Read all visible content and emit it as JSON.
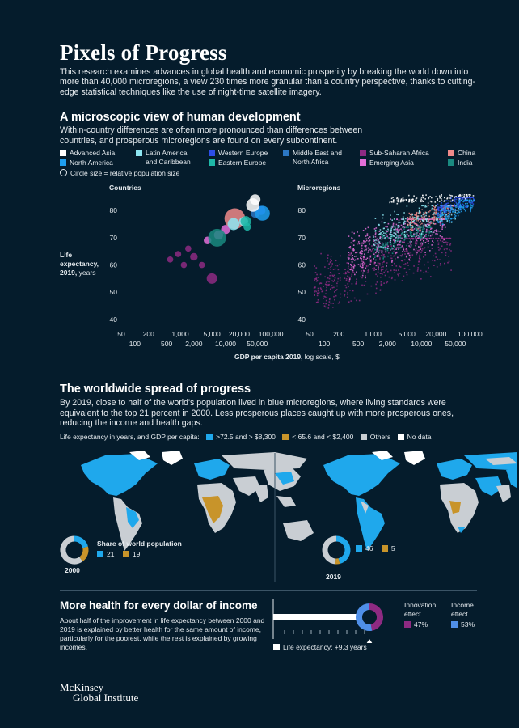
{
  "header": {
    "title": "Pixels of Progress",
    "intro": "This research examines advances in global health and economic prosperity by breaking the world down into more than 40,000 microregions, a view 230 times more granular than a country perspective, thanks to cutting-edge statistical techniques like the use of night-time satellite imagery."
  },
  "section1": {
    "heading": "A microscopic view of human development",
    "subtitle": "Within-country differences are often more pronounced than differences between countries, and prosperous microregions are found on every subcontinent.",
    "legend": [
      {
        "label": "Advanced Asia",
        "color": "#ffffff"
      },
      {
        "label": "North America",
        "color": "#1f9ff0"
      },
      {
        "label": "Latin America and Caribbean",
        "color": "#8de6f2"
      },
      {
        "label": "Western Europe",
        "color": "#2d4ee8"
      },
      {
        "label": "Eastern Europe",
        "color": "#1fb8a8"
      },
      {
        "label": "Middle East and North Africa",
        "color": "#2c77c4"
      },
      {
        "label": "Sub-Saharan Africa",
        "color": "#8e2a82"
      },
      {
        "label": "Emerging Asia",
        "color": "#e46fd9"
      },
      {
        "label": "China",
        "color": "#f08a8a"
      },
      {
        "label": "India",
        "color": "#1a8a80"
      }
    ],
    "circle_note": "Circle size = relative population size",
    "panel_left_title": "Countries",
    "panel_right_title": "Microregions",
    "ylabel_line1": "Life",
    "ylabel_line2": "expectancy,",
    "ylabel_line3": "2019,",
    "ylabel_unit": "years",
    "xlabel": "GDP per capita 2019,",
    "xlabel_unit": "log scale, $",
    "y_ticks": [
      "40",
      "50",
      "60",
      "70",
      "80"
    ],
    "x_ticks_top": [
      "50",
      "200",
      "1,000",
      "5,000",
      "20,000",
      "100,000"
    ],
    "x_ticks_bottom": [
      "100",
      "500",
      "2,000",
      "10,000",
      "50,000"
    ]
  },
  "section2": {
    "heading": "The worldwide spread of progress",
    "subtitle": "By 2019, close to half of the world's population lived in blue microregions, where living standards were equivalent to the top 21 percent in 2000. Less prosperous places caught up with more prosperous ones, reducing the income and health gaps.",
    "legend_prefix": "Life expectancy in years, and GDP per capita:",
    "legend": [
      {
        "label": ">72.5 and > $8,300",
        "color": "#1fa8ec"
      },
      {
        "label": "< 65.6 and < $2,400",
        "color": "#c8942a"
      },
      {
        "label": "Others",
        "color": "#c9ced3"
      },
      {
        "label": "No data",
        "color": "#ffffff"
      }
    ],
    "share_title": "Share of world population",
    "year_2000": "2000",
    "year_2019": "2019",
    "share_2000_blue": "21",
    "share_2000_gold": "19",
    "share_2019_blue": "46",
    "share_2019_gold": "5"
  },
  "section3": {
    "heading": "More health for every dollar of income",
    "body": "About half of the improvement in life expectancy between 2000 and 2019 is explained by better health for the same amount of income, particularly for the poorest, while the rest is explained by growing incomes.",
    "innovation_label_1": "Innovation",
    "innovation_label_2": "effect",
    "innovation_value": "47%",
    "income_label_1": "Income",
    "income_label_2": "effect",
    "income_value": "53%",
    "bar_legend": "Life expectancy: +9.3 years"
  },
  "footer": {
    "brand_line1": "McKinsey",
    "brand_line2": "Global Institute"
  },
  "chart_data": [
    {
      "type": "scatter",
      "title": "Countries",
      "xlabel": "GDP per capita 2019, log scale, $",
      "ylabel": "Life expectancy, 2019, years",
      "xscale": "log",
      "xlim": [
        50,
        150000
      ],
      "ylim": [
        37,
        86
      ],
      "points": [
        {
          "gdp": 600,
          "life": 62,
          "region": "Sub-Saharan Africa",
          "size": 2
        },
        {
          "gdp": 900,
          "life": 64,
          "region": "Sub-Saharan Africa",
          "size": 2
        },
        {
          "gdp": 1200,
          "life": 60,
          "region": "Sub-Saharan Africa",
          "size": 2
        },
        {
          "gdp": 1500,
          "life": 66,
          "region": "Sub-Saharan Africa",
          "size": 2
        },
        {
          "gdp": 2000,
          "life": 63,
          "region": "Sub-Saharan Africa",
          "size": 3
        },
        {
          "gdp": 3000,
          "life": 60,
          "region": "Sub-Saharan Africa",
          "size": 2
        },
        {
          "gdp": 5000,
          "life": 55,
          "region": "Sub-Saharan Africa",
          "size": 5
        },
        {
          "gdp": 4000,
          "life": 69,
          "region": "Emerging Asia",
          "size": 3
        },
        {
          "gdp": 7000,
          "life": 71,
          "region": "Emerging Asia",
          "size": 4
        },
        {
          "gdp": 10000,
          "life": 73,
          "region": "Emerging Asia",
          "size": 4
        },
        {
          "gdp": 6500,
          "life": 70,
          "region": "India",
          "size": 10
        },
        {
          "gdp": 16000,
          "life": 77,
          "region": "China",
          "size": 12
        },
        {
          "gdp": 15000,
          "life": 75,
          "region": "Latin America and Caribbean",
          "size": 6
        },
        {
          "gdp": 25000,
          "life": 76,
          "region": "Latin America and Caribbean",
          "size": 4
        },
        {
          "gdp": 28000,
          "life": 76,
          "region": "Eastern Europe",
          "size": 5
        },
        {
          "gdp": 30000,
          "life": 74,
          "region": "Eastern Europe",
          "size": 3
        },
        {
          "gdp": 45000,
          "life": 79,
          "region": "Middle East and North Africa",
          "size": 4
        },
        {
          "gdp": 60000,
          "life": 80,
          "region": "Western Europe",
          "size": 4
        },
        {
          "gdp": 65000,
          "life": 79,
          "region": "North America",
          "size": 8
        },
        {
          "gdp": 45000,
          "life": 84,
          "region": "Advanced Asia",
          "size": 5
        },
        {
          "gdp": 40000,
          "life": 82,
          "region": "Advanced Asia",
          "size": 7
        }
      ]
    },
    {
      "type": "scatter",
      "title": "Microregions",
      "xlabel": "GDP per capita 2019, log scale, $",
      "ylabel": "Life expectancy, 2019, years",
      "xscale": "log",
      "xlim": [
        50,
        150000
      ],
      "ylim": [
        37,
        86
      ],
      "clusters": [
        {
          "region": "Sub-Saharan Africa",
          "gdp_range": [
            60,
            40000
          ],
          "life_range": [
            43,
            70
          ]
        },
        {
          "region": "Emerging Asia",
          "gdp_range": [
            300,
            30000
          ],
          "life_range": [
            55,
            77
          ]
        },
        {
          "region": "India",
          "gdp_range": [
            1000,
            15000
          ],
          "life_range": [
            62,
            74
          ]
        },
        {
          "region": "China",
          "gdp_range": [
            5000,
            50000
          ],
          "life_range": [
            72,
            82
          ]
        },
        {
          "region": "Latin America and Caribbean",
          "gdp_range": [
            1000,
            60000
          ],
          "life_range": [
            65,
            82
          ]
        },
        {
          "region": "Western Europe",
          "gdp_range": [
            20000,
            120000
          ],
          "life_range": [
            78,
            85
          ]
        },
        {
          "region": "North America",
          "gdp_range": [
            20000,
            120000
          ],
          "life_range": [
            74,
            84
          ]
        },
        {
          "region": "Advanced Asia",
          "gdp_range": [
            2000,
            120000
          ],
          "life_range": [
            82,
            86
          ]
        }
      ]
    },
    {
      "type": "pie",
      "title": "Share of world population 2000",
      "categories": [
        "Blue microregions",
        "Gold microregions",
        "Others"
      ],
      "values": [
        21,
        19,
        60
      ]
    },
    {
      "type": "pie",
      "title": "Share of world population 2019",
      "categories": [
        "Blue microregions",
        "Gold microregions",
        "Others"
      ],
      "values": [
        46,
        5,
        49
      ]
    },
    {
      "type": "pie",
      "title": "Life expectancy: +9.3 years",
      "categories": [
        "Innovation effect",
        "Income effect"
      ],
      "values": [
        47,
        53
      ]
    }
  ]
}
